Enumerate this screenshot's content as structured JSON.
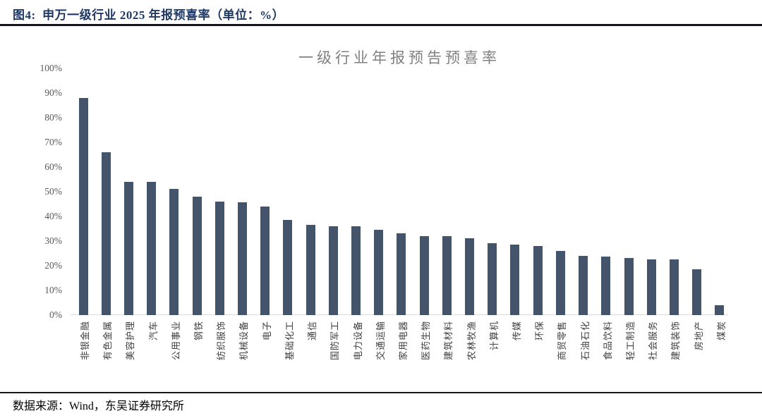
{
  "figure": {
    "header_title": "图4:  申万一级行业 2025 年报预喜率（单位：%）",
    "source_note": "数据来源：Wind，东吴证券研究所"
  },
  "chart_data": {
    "type": "bar",
    "title": "一级行业年报预告预喜率",
    "categories": [
      "非银金融",
      "有色金属",
      "美容护理",
      "汽车",
      "公用事业",
      "钢铁",
      "纺织服饰",
      "机械设备",
      "电子",
      "基础化工",
      "通信",
      "国防军工",
      "电力设备",
      "交通运输",
      "家用电器",
      "医药生物",
      "建筑材料",
      "农林牧渔",
      "计算机",
      "传媒",
      "环保",
      "商贸零售",
      "石油石化",
      "食品饮料",
      "轻工制造",
      "社会服务",
      "建筑装饰",
      "房地产",
      "煤炭"
    ],
    "values": [
      88,
      66,
      54,
      54,
      51,
      48,
      46,
      45.5,
      44,
      38.5,
      36.5,
      36,
      36,
      34.5,
      33,
      32,
      32,
      31,
      29,
      28.5,
      28,
      26,
      24,
      23.5,
      23,
      22.5,
      22.5,
      18.5,
      4
    ],
    "unit": "%",
    "xlabel": "",
    "ylabel": "",
    "ylim": [
      0,
      100
    ],
    "ytick_step": 10,
    "ytick_suffix": "%",
    "grid": false,
    "legend_position": "none",
    "bar_color": "#44546A",
    "colors": {
      "header_text": "#1F3864",
      "chart_title_text": "#808080",
      "axis_tick_text": "#595959",
      "category_text": "#3f3f3f",
      "baseline": "#d9d9d9",
      "rule": "#15151f"
    }
  }
}
